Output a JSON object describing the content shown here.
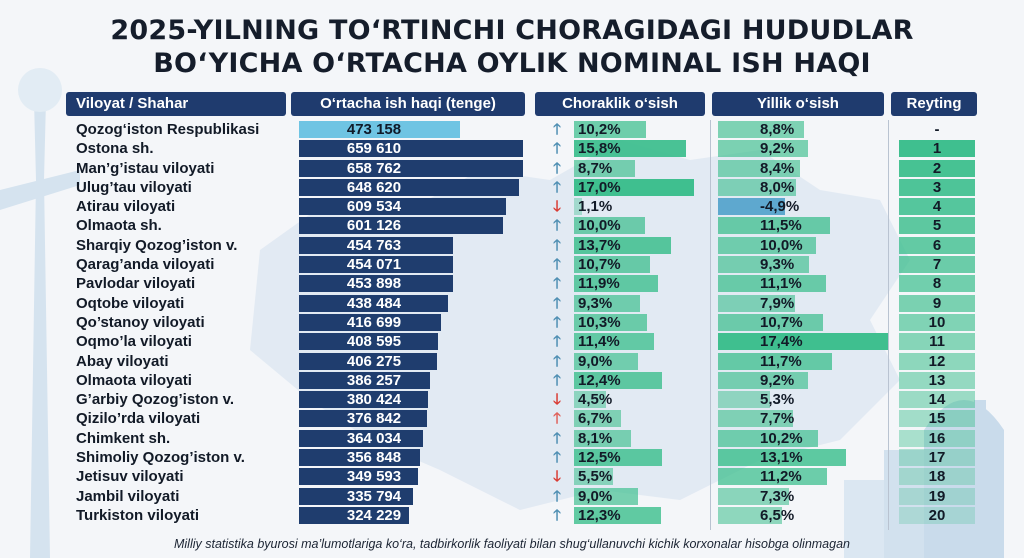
{
  "title_line1": "2025-YILNING TO‘RTINCHI CHORAGIDAGI HUDUDLAR",
  "title_line2": "BO‘YICHA O‘RTACHA OYLIK NOMINAL ISH HAQI",
  "headers": {
    "region": "Viloyat / Shahar",
    "salary": "O‘rtacha ish haqi (tenge)",
    "quarterly": "Choraklik o‘sish",
    "yearly": "Yillik o‘sish",
    "rank": "Reyting"
  },
  "footnote": "Milliy statistika byurosi ma’lumotlariga ko‘ra, tadbirkorlik faoliyati bilan shug‘ullanuvchi kichik korxonalar hisobga olinmagan",
  "colors": {
    "header_bg": "#1f3b6e",
    "salary_bar": "#1f3d6e",
    "salary_bar_national": "#6fc4e3",
    "growth_bar": "#3fbf8f",
    "decline_bar": "#5ea8cf",
    "arrow_up": "#4f8fb3",
    "arrow_down": "#d93b33",
    "arrow_up_red": "#e0625b"
  },
  "chart_data": {
    "type": "table",
    "title": "2025-YILNING TO‘RTINCHI CHORAGIDAGI HUDUDLAR BO‘YICHA O‘RTACHA OYLIK NOMINAL ISH HAQI",
    "columns": [
      "Viloyat / Shahar",
      "O‘rtacha ish haqi (tenge)",
      "Choraklik o‘sish",
      "Yillik o‘sish",
      "Reyting"
    ],
    "salary_max": 659610,
    "quarterly_max": 17.0,
    "yearly_max": 17.4,
    "rows": [
      {
        "region": "Qozog‘iston Respublikasi",
        "salary": 473158,
        "salary_label": "473 158",
        "quarterly": 10.2,
        "quarterly_label": "10,2%",
        "q_arrow": "up",
        "yearly": 8.8,
        "yearly_label": "8,8%",
        "rank": "-",
        "national": true
      },
      {
        "region": "Ostona sh.",
        "salary": 659610,
        "salary_label": "659 610",
        "quarterly": 15.8,
        "quarterly_label": "15,8%",
        "q_arrow": "up",
        "yearly": 9.2,
        "yearly_label": "9,2%",
        "rank": "1"
      },
      {
        "region": "Man’g’istau viloyati",
        "salary": 658762,
        "salary_label": "658 762",
        "quarterly": 8.7,
        "quarterly_label": "8,7%",
        "q_arrow": "up",
        "yearly": 8.4,
        "yearly_label": "8,4%",
        "rank": "2"
      },
      {
        "region": "Ulug’tau viloyati",
        "salary": 648620,
        "salary_label": "648 620",
        "quarterly": 17.0,
        "quarterly_label": "17,0%",
        "q_arrow": "up",
        "yearly": 8.0,
        "yearly_label": "8,0%",
        "rank": "3"
      },
      {
        "region": "Atirau viloyati",
        "salary": 609534,
        "salary_label": "609 534",
        "quarterly": 1.1,
        "quarterly_label": "1,1%",
        "q_arrow": "down",
        "yearly": -4.9,
        "yearly_label": "-4,9%",
        "rank": "4"
      },
      {
        "region": "Olmaota sh.",
        "salary": 601126,
        "salary_label": "601 126",
        "quarterly": 10.0,
        "quarterly_label": "10,0%",
        "q_arrow": "up",
        "yearly": 11.5,
        "yearly_label": "11,5%",
        "rank": "5"
      },
      {
        "region": "Sharqiy Qozog’iston v.",
        "salary": 454763,
        "salary_label": "454 763",
        "quarterly": 13.7,
        "quarterly_label": "13,7%",
        "q_arrow": "up",
        "yearly": 10.0,
        "yearly_label": "10,0%",
        "rank": "6"
      },
      {
        "region": "Qarag’anda viloyati",
        "salary": 454071,
        "salary_label": "454 071",
        "quarterly": 10.7,
        "quarterly_label": "10,7%",
        "q_arrow": "up",
        "yearly": 9.3,
        "yearly_label": "9,3%",
        "rank": "7"
      },
      {
        "region": "Pavlodar viloyati",
        "salary": 453898,
        "salary_label": "453 898",
        "quarterly": 11.9,
        "quarterly_label": "11,9%",
        "q_arrow": "up",
        "yearly": 11.1,
        "yearly_label": "11,1%",
        "rank": "8"
      },
      {
        "region": "Oqtobe viloyati",
        "salary": 438484,
        "salary_label": "438 484",
        "quarterly": 9.3,
        "quarterly_label": "9,3%",
        "q_arrow": "up",
        "yearly": 7.9,
        "yearly_label": "7,9%",
        "rank": "9"
      },
      {
        "region": "Qo’stanoy viloyati",
        "salary": 416699,
        "salary_label": "416 699",
        "quarterly": 10.3,
        "quarterly_label": "10,3%",
        "q_arrow": "up",
        "yearly": 10.7,
        "yearly_label": "10,7%",
        "rank": "10"
      },
      {
        "region": "Oqmo’la viloyati",
        "salary": 408595,
        "salary_label": "408 595",
        "quarterly": 11.4,
        "quarterly_label": "11,4%",
        "q_arrow": "up",
        "yearly": 17.4,
        "yearly_label": "17,4%",
        "rank": "11"
      },
      {
        "region": "Abay viloyati",
        "salary": 406275,
        "salary_label": "406 275",
        "quarterly": 9.0,
        "quarterly_label": "9,0%",
        "q_arrow": "up",
        "yearly": 11.7,
        "yearly_label": "11,7%",
        "rank": "12"
      },
      {
        "region": "Olmaota viloyati",
        "salary": 386257,
        "salary_label": "386 257",
        "quarterly": 12.4,
        "quarterly_label": "12,4%",
        "q_arrow": "up",
        "yearly": 9.2,
        "yearly_label": "9,2%",
        "rank": "13"
      },
      {
        "region": "G’arbiy Qozog’iston v.",
        "salary": 380424,
        "salary_label": "380 424",
        "quarterly": 4.5,
        "quarterly_label": "4,5%",
        "q_arrow": "down",
        "yearly": 5.3,
        "yearly_label": "5,3%",
        "rank": "14"
      },
      {
        "region": "Qizilo’rda viloyati",
        "salary": 376842,
        "salary_label": "376 842",
        "quarterly": 6.7,
        "quarterly_label": "6,7%",
        "q_arrow": "up_red",
        "yearly": 7.7,
        "yearly_label": "7,7%",
        "rank": "15"
      },
      {
        "region": "Chimkent sh.",
        "salary": 364034,
        "salary_label": "364 034",
        "quarterly": 8.1,
        "quarterly_label": "8,1%",
        "q_arrow": "up",
        "yearly": 10.2,
        "yearly_label": "10,2%",
        "rank": "16"
      },
      {
        "region": "Shimoliy Qozog’iston v.",
        "salary": 356848,
        "salary_label": "356 848",
        "quarterly": 12.5,
        "quarterly_label": "12,5%",
        "q_arrow": "up",
        "yearly": 13.1,
        "yearly_label": "13,1%",
        "rank": "17"
      },
      {
        "region": "Jetisuv viloyati",
        "salary": 349593,
        "salary_label": "349 593",
        "quarterly": 5.5,
        "quarterly_label": "5,5%",
        "q_arrow": "down",
        "yearly": 11.2,
        "yearly_label": "11,2%",
        "rank": "18"
      },
      {
        "region": "Jambil viloyati",
        "salary": 335794,
        "salary_label": "335 794",
        "quarterly": 9.0,
        "quarterly_label": "9,0%",
        "q_arrow": "up",
        "yearly": 7.3,
        "yearly_label": "7,3%",
        "rank": "19"
      },
      {
        "region": "Turkiston viloyati",
        "salary": 324229,
        "salary_label": "324 229",
        "quarterly": 12.3,
        "quarterly_label": "12,3%",
        "q_arrow": "up",
        "yearly": 6.5,
        "yearly_label": "6,5%",
        "rank": "20"
      }
    ]
  }
}
